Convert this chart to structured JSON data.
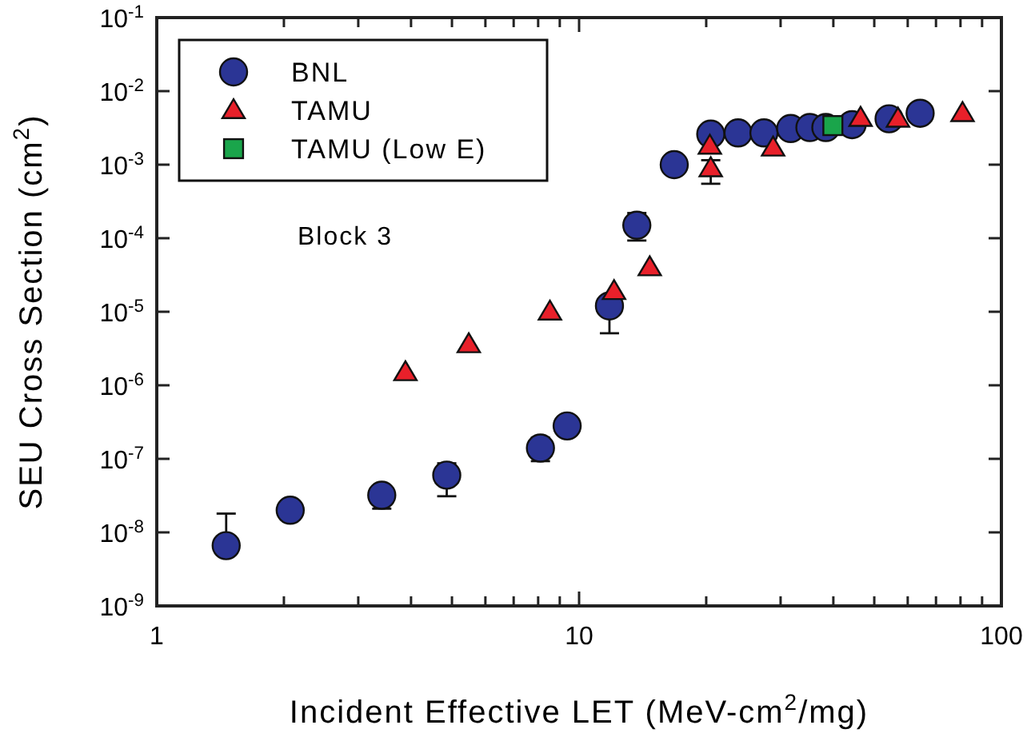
{
  "chart_data": {
    "type": "scatter",
    "xlabel": "Incident Effective LET (MeV-cm$^{2}$/mg)",
    "ylabel": "SEU Cross Section (cm$^{2}$)",
    "log": "xy",
    "xlim": [
      1,
      100
    ],
    "ylim": [
      1e-09,
      0.1
    ],
    "xticks": [
      1,
      {
        "value": 2,
        "label": null
      },
      {
        "value": 3,
        "label": null
      },
      {
        "value": 4,
        "label": null
      },
      {
        "value": 5,
        "label": null
      },
      {
        "value": 6,
        "label": null
      },
      {
        "value": 7,
        "label": null
      },
      {
        "value": 8,
        "label": null
      },
      {
        "value": 9,
        "label": null
      },
      10,
      {
        "value": 20,
        "label": null
      },
      {
        "value": 30,
        "label": null
      },
      {
        "value": 40,
        "label": null
      },
      {
        "value": 50,
        "label": null
      },
      {
        "value": 60,
        "label": null
      },
      {
        "value": 70,
        "label": null
      },
      {
        "value": 80,
        "label": null
      },
      {
        "value": 90,
        "label": null
      },
      100
    ],
    "yticks": [
      {
        "value": 1e-09,
        "label": "10$^{-9}$"
      },
      {
        "value": 1e-08,
        "label": "10$^{-8}$"
      },
      {
        "value": 1e-07,
        "label": "10$^{-7}$"
      },
      {
        "value": 1e-06,
        "label": "10$^{-6}$"
      },
      {
        "value": 1e-05,
        "label": "10$^{-5}$"
      },
      {
        "value": 0.0001,
        "label": "10$^{-4}$"
      },
      {
        "value": 0.001,
        "label": "10$^{-3}$"
      },
      {
        "value": 0.01,
        "label": "10$^{-2}$"
      },
      {
        "value": 0.1,
        "label": "10$^{-1}$"
      }
    ],
    "grid": false,
    "legend": "top left",
    "annotations": [
      "Block 3"
    ],
    "series": [
      {
        "name": "BNL",
        "color": "#2b3595",
        "marker": "circle",
        "x": [
          1.46,
          2.07,
          3.41,
          4.86,
          8.1,
          9.37,
          11.8,
          13.7,
          16.8,
          20.5,
          23.8,
          27.4,
          31.7,
          35.2,
          38.4,
          44.3,
          54.2,
          64.2
        ],
        "values": [
          6.6e-09,
          2e-08,
          3.2e-08,
          6e-08,
          1.4e-07,
          2.8e-07,
          1.2e-05,
          0.00015,
          0.001,
          0.0026,
          0.0027,
          0.0027,
          0.0031,
          0.0032,
          0.0032,
          0.0035,
          0.0042,
          0.005
        ],
        "errors": [
          [
            6.6e-09,
            1.8e-08
          ],
          null,
          [
            2.1e-08,
            3.2e-08
          ],
          [
            3.1e-08,
            8.7e-08
          ],
          [
            9.3e-08,
            1.95e-07
          ],
          null,
          [
            5.1e-06,
            1.2e-05
          ],
          [
            9.3e-05,
            0.00022
          ],
          null,
          null,
          null,
          null,
          null,
          null,
          null,
          null,
          null,
          null
        ]
      },
      {
        "name": "TAMU",
        "color": "#e8202a",
        "marker": "triangle",
        "x": [
          3.88,
          5.48,
          8.53,
          12.1,
          14.7,
          20.4,
          20.5,
          28.8,
          46.4,
          56.9,
          80.9
        ],
        "values": [
          1.5e-06,
          3.6e-06,
          1e-05,
          1.9e-05,
          4e-05,
          0.0018,
          0.00089,
          0.0017,
          0.0043,
          0.0042,
          0.005
        ],
        "errors": [
          null,
          null,
          null,
          null,
          null,
          null,
          [
            0.00055,
            0.00115
          ],
          null,
          null,
          null,
          null
        ]
      },
      {
        "name": "TAMU (Low E)",
        "color": "#1aa54b",
        "marker": "square",
        "x": [
          39.9
        ],
        "values": [
          0.0034
        ]
      }
    ]
  }
}
